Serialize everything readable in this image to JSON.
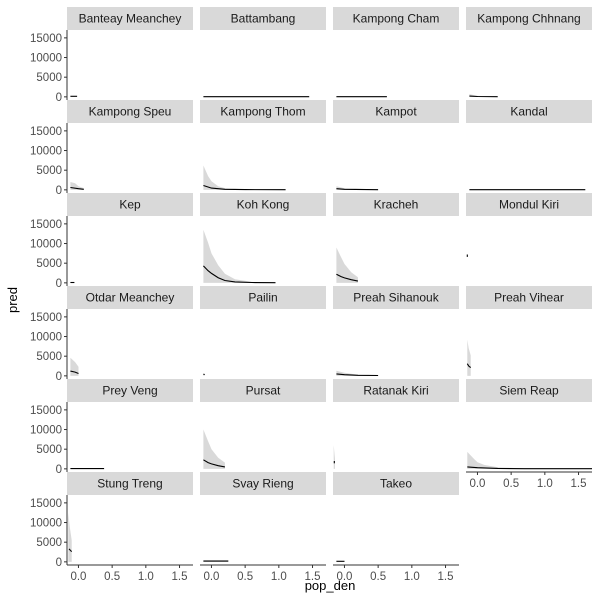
{
  "chart_data": {
    "type": "line",
    "xlabel": "pop_den",
    "ylabel": "pred",
    "xlim": [
      -0.17,
      1.7
    ],
    "ylim": [
      -800,
      17000
    ],
    "x_ticks": [
      0.0,
      0.5,
      1.0,
      1.5
    ],
    "x_tick_labels": [
      "0.0",
      "0.5",
      "1.0",
      "1.5"
    ],
    "y_ticks": [
      0,
      5000,
      10000,
      15000
    ],
    "y_tick_labels": [
      "0",
      "5000",
      "10000",
      "15000"
    ],
    "grid": false,
    "legend": "none",
    "colors": {
      "line": "#000000",
      "ribbon": "#d9d9d9",
      "strip": "#d9d9d9"
    },
    "panels": [
      {
        "name": "Banteay Meanchey",
        "line": [
          [
            -0.12,
            150
          ],
          [
            -0.02,
            150
          ]
        ],
        "ribbon": []
      },
      {
        "name": "Battambang",
        "line": [
          [
            -0.12,
            30
          ],
          [
            1.45,
            30
          ]
        ],
        "ribbon": []
      },
      {
        "name": "Kampong Cham",
        "line": [
          [
            -0.12,
            30
          ],
          [
            0.63,
            30
          ]
        ],
        "ribbon": []
      },
      {
        "name": "Kampong Chhnang",
        "line": [
          [
            -0.12,
            200
          ],
          [
            0.0,
            100
          ],
          [
            0.3,
            40
          ]
        ],
        "ribbon": [
          [
            -0.12,
            0,
            700
          ],
          [
            0.0,
            0,
            250
          ],
          [
            0.3,
            0,
            80
          ]
        ]
      },
      {
        "name": "Kampong Speu",
        "line": [
          [
            -0.12,
            600
          ],
          [
            0.0,
            300
          ],
          [
            0.08,
            150
          ]
        ],
        "ribbon": [
          [
            -0.12,
            0,
            2000
          ],
          [
            -0.05,
            0,
            1700
          ],
          [
            0.0,
            0,
            900
          ],
          [
            0.08,
            0,
            450
          ]
        ]
      },
      {
        "name": "Kampong Thom",
        "line": [
          [
            -0.12,
            1100
          ],
          [
            0.0,
            450
          ],
          [
            0.2,
            150
          ],
          [
            0.5,
            60
          ],
          [
            1.1,
            30
          ]
        ],
        "ribbon": [
          [
            -0.12,
            0,
            6200
          ],
          [
            -0.05,
            0,
            3500
          ],
          [
            0.0,
            0,
            2200
          ],
          [
            0.1,
            0,
            900
          ],
          [
            0.2,
            0,
            450
          ],
          [
            0.5,
            0,
            120
          ],
          [
            1.1,
            0,
            50
          ]
        ]
      },
      {
        "name": "Kampot",
        "line": [
          [
            -0.12,
            300
          ],
          [
            0.0,
            150
          ],
          [
            0.5,
            40
          ]
        ],
        "ribbon": [
          [
            -0.12,
            0,
            900
          ],
          [
            0.0,
            0,
            400
          ],
          [
            0.5,
            0,
            80
          ]
        ]
      },
      {
        "name": "Kandal",
        "line": [
          [
            -0.12,
            30
          ],
          [
            1.6,
            30
          ]
        ],
        "ribbon": []
      },
      {
        "name": "Kep",
        "line": [
          [
            -0.12,
            80
          ],
          [
            -0.06,
            80
          ]
        ],
        "ribbon": []
      },
      {
        "name": "Koh Kong",
        "line": [
          [
            -0.12,
            4300
          ],
          [
            -0.05,
            3100
          ],
          [
            0.0,
            2400
          ],
          [
            0.1,
            1300
          ],
          [
            0.2,
            600
          ],
          [
            0.35,
            250
          ],
          [
            0.6,
            80
          ],
          [
            0.95,
            40
          ]
        ],
        "ribbon": [
          [
            -0.12,
            0,
            13500
          ],
          [
            -0.05,
            0,
            10200
          ],
          [
            0.0,
            0,
            7500
          ],
          [
            0.1,
            0,
            4500
          ],
          [
            0.2,
            0,
            2300
          ],
          [
            0.35,
            0,
            900
          ],
          [
            0.6,
            0,
            250
          ],
          [
            0.95,
            0,
            80
          ]
        ]
      },
      {
        "name": "Kracheh",
        "line": [
          [
            -0.12,
            2200
          ],
          [
            -0.05,
            1600
          ],
          [
            0.0,
            1250
          ],
          [
            0.1,
            800
          ],
          [
            0.2,
            450
          ]
        ],
        "ribbon": [
          [
            -0.12,
            0,
            9000
          ],
          [
            -0.05,
            0,
            6500
          ],
          [
            0.0,
            0,
            4800
          ],
          [
            0.1,
            0,
            2700
          ],
          [
            0.2,
            0,
            1400
          ]
        ]
      },
      {
        "name": "Mondul Kiri",
        "line": [
          [
            -0.15,
            6600
          ],
          [
            -0.15,
            7200
          ]
        ],
        "ribbon": []
      },
      {
        "name": "Otdar Meanchey",
        "line": [
          [
            -0.12,
            1200
          ],
          [
            -0.05,
            950
          ],
          [
            0.0,
            600
          ]
        ],
        "ribbon": [
          [
            -0.12,
            0,
            4600
          ],
          [
            -0.05,
            0,
            3500
          ],
          [
            0.0,
            0,
            2300
          ]
        ]
      },
      {
        "name": "Pailin",
        "line": [
          [
            -0.12,
            400
          ],
          [
            -0.1,
            350
          ]
        ],
        "ribbon": [
          [
            -0.12,
            0,
            700
          ],
          [
            -0.1,
            0,
            550
          ]
        ]
      },
      {
        "name": "Preah Sihanouk",
        "line": [
          [
            -0.12,
            500
          ],
          [
            0.0,
            300
          ],
          [
            0.2,
            150
          ],
          [
            0.5,
            80
          ]
        ],
        "ribbon": [
          [
            -0.12,
            0,
            1300
          ],
          [
            0.0,
            0,
            800
          ],
          [
            0.2,
            0,
            300
          ],
          [
            0.5,
            0,
            120
          ]
        ]
      },
      {
        "name": "Preah Vihear",
        "line": [
          [
            -0.15,
            3100
          ],
          [
            -0.13,
            2500
          ],
          [
            -0.1,
            2100
          ]
        ],
        "ribbon": [
          [
            -0.15,
            0,
            9200
          ],
          [
            -0.13,
            0,
            7000
          ],
          [
            -0.1,
            0,
            5200
          ]
        ]
      },
      {
        "name": "Prey Veng",
        "line": [
          [
            -0.12,
            60
          ],
          [
            0.38,
            60
          ]
        ],
        "ribbon": []
      },
      {
        "name": "Pursat",
        "line": [
          [
            -0.12,
            2300
          ],
          [
            -0.05,
            1600
          ],
          [
            0.0,
            1250
          ],
          [
            0.1,
            800
          ],
          [
            0.2,
            500
          ]
        ],
        "ribbon": [
          [
            -0.12,
            0,
            10000
          ],
          [
            -0.05,
            0,
            7000
          ],
          [
            0.0,
            0,
            5000
          ],
          [
            0.1,
            0,
            2800
          ],
          [
            0.2,
            0,
            1600
          ]
        ]
      },
      {
        "name": "Ratanak Kiri",
        "line": [
          [
            -0.15,
            2000
          ],
          [
            -0.15,
            1400
          ]
        ],
        "ribbon": [
          [
            -0.16,
            0,
            6000
          ],
          [
            -0.14,
            0,
            2500
          ]
        ]
      },
      {
        "name": "Siem Reap",
        "line": [
          [
            -0.15,
            500
          ],
          [
            0.0,
            300
          ],
          [
            0.3,
            120
          ],
          [
            0.7,
            50
          ],
          [
            1.7,
            30
          ]
        ],
        "ribbon": [
          [
            -0.15,
            0,
            4300
          ],
          [
            -0.05,
            0,
            2500
          ],
          [
            0.0,
            0,
            1700
          ],
          [
            0.1,
            0,
            1000
          ],
          [
            0.3,
            0,
            400
          ],
          [
            0.7,
            0,
            120
          ],
          [
            1.7,
            0,
            60
          ]
        ]
      },
      {
        "name": "Stung Treng",
        "line": [
          [
            -0.14,
            3300
          ],
          [
            -0.12,
            2900
          ],
          [
            -0.1,
            2600
          ]
        ],
        "ribbon": [
          [
            -0.15,
            0,
            12500
          ],
          [
            -0.13,
            0,
            9000
          ],
          [
            -0.1,
            0,
            5500
          ]
        ]
      },
      {
        "name": "Svay Rieng",
        "line": [
          [
            -0.12,
            200
          ],
          [
            0.25,
            200
          ]
        ],
        "ribbon": [
          [
            -0.12,
            0,
            400
          ],
          [
            0.25,
            0,
            400
          ]
        ]
      },
      {
        "name": "Takeo",
        "line": [
          [
            -0.12,
            150
          ],
          [
            0.0,
            150
          ]
        ],
        "ribbon": []
      }
    ]
  }
}
